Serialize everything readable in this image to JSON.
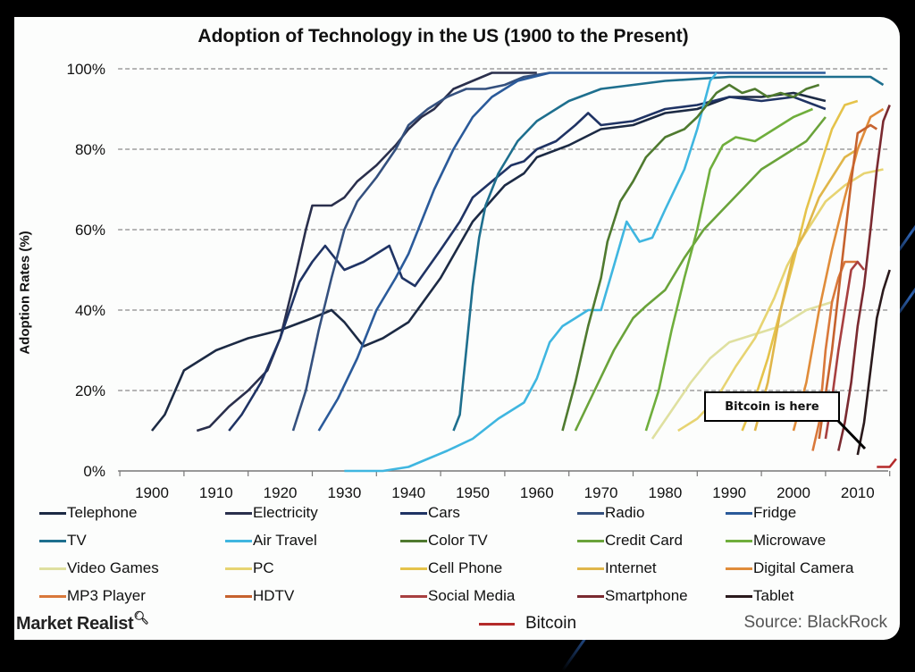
{
  "chart_data": {
    "type": "line",
    "title": "Adoption of Technology in the US (1900 to the Present)",
    "xlabel": "",
    "ylabel": "Adoption Rates (%)",
    "xlim": [
      1895,
      2015
    ],
    "ylim": [
      0,
      100
    ],
    "x_ticks": [
      "1900",
      "1910",
      "1920",
      "1930",
      "1940",
      "1950",
      "1960",
      "1970",
      "1980",
      "1990",
      "2000",
      "2010"
    ],
    "y_ticks": [
      "0%",
      "20%",
      "40%",
      "60%",
      "80%",
      "100%"
    ],
    "grid": "horizontal dashed",
    "legend_position": "bottom",
    "source": "Source: BlackRock",
    "annotation": "Bitcoin is here",
    "series": [
      {
        "name": "Telephone",
        "color": "#1c2a44",
        "points": [
          [
            1900,
            10
          ],
          [
            1902,
            14
          ],
          [
            1905,
            25
          ],
          [
            1910,
            30
          ],
          [
            1915,
            33
          ],
          [
            1920,
            35
          ],
          [
            1925,
            38
          ],
          [
            1928,
            40
          ],
          [
            1930,
            37
          ],
          [
            1933,
            31
          ],
          [
            1936,
            33
          ],
          [
            1940,
            37
          ],
          [
            1945,
            48
          ],
          [
            1950,
            62
          ],
          [
            1955,
            71
          ],
          [
            1958,
            74
          ],
          [
            1960,
            78
          ],
          [
            1965,
            81
          ],
          [
            1970,
            85
          ],
          [
            1975,
            86
          ],
          [
            1980,
            89
          ],
          [
            1985,
            90
          ],
          [
            1990,
            93
          ],
          [
            1995,
            93
          ],
          [
            2000,
            94
          ],
          [
            2005,
            92
          ]
        ]
      },
      {
        "name": "Electricity",
        "color": "#2a2f4c",
        "points": [
          [
            1907,
            10
          ],
          [
            1909,
            11
          ],
          [
            1912,
            16
          ],
          [
            1915,
            20
          ],
          [
            1918,
            25
          ],
          [
            1920,
            33
          ],
          [
            1922,
            46
          ],
          [
            1924,
            60
          ],
          [
            1925,
            66
          ],
          [
            1928,
            66
          ],
          [
            1930,
            68
          ],
          [
            1932,
            72
          ],
          [
            1935,
            76
          ],
          [
            1938,
            81
          ],
          [
            1940,
            85
          ],
          [
            1942,
            88
          ],
          [
            1944,
            90
          ],
          [
            1947,
            95
          ],
          [
            1950,
            97
          ],
          [
            1953,
            99
          ],
          [
            1960,
            99
          ]
        ]
      },
      {
        "name": "Cars",
        "color": "#1f3364",
        "points": [
          [
            1912,
            10
          ],
          [
            1914,
            14
          ],
          [
            1917,
            22
          ],
          [
            1920,
            33
          ],
          [
            1923,
            47
          ],
          [
            1925,
            52
          ],
          [
            1927,
            56
          ],
          [
            1928,
            54
          ],
          [
            1930,
            50
          ],
          [
            1933,
            52
          ],
          [
            1935,
            54
          ],
          [
            1937,
            56
          ],
          [
            1939,
            48
          ],
          [
            1941,
            46
          ],
          [
            1945,
            55
          ],
          [
            1948,
            62
          ],
          [
            1950,
            68
          ],
          [
            1953,
            72
          ],
          [
            1956,
            76
          ],
          [
            1958,
            77
          ],
          [
            1960,
            80
          ],
          [
            1963,
            82
          ],
          [
            1966,
            86
          ],
          [
            1968,
            89
          ],
          [
            1970,
            86
          ],
          [
            1975,
            87
          ],
          [
            1980,
            90
          ],
          [
            1985,
            91
          ],
          [
            1990,
            93
          ],
          [
            1995,
            92
          ],
          [
            2000,
            93
          ],
          [
            2005,
            90
          ]
        ]
      },
      {
        "name": "Radio",
        "color": "#34507e",
        "points": [
          [
            1922,
            10
          ],
          [
            1924,
            20
          ],
          [
            1926,
            35
          ],
          [
            1928,
            48
          ],
          [
            1930,
            60
          ],
          [
            1932,
            67
          ],
          [
            1935,
            73
          ],
          [
            1938,
            80
          ],
          [
            1940,
            86
          ],
          [
            1943,
            90
          ],
          [
            1946,
            93
          ],
          [
            1949,
            95
          ],
          [
            1952,
            95
          ],
          [
            1955,
            96
          ],
          [
            1958,
            98
          ],
          [
            1962,
            99
          ]
        ]
      },
      {
        "name": "Fridge",
        "color": "#2a5a9a",
        "points": [
          [
            1926,
            10
          ],
          [
            1929,
            18
          ],
          [
            1932,
            28
          ],
          [
            1935,
            40
          ],
          [
            1938,
            48
          ],
          [
            1940,
            54
          ],
          [
            1942,
            62
          ],
          [
            1944,
            70
          ],
          [
            1947,
            80
          ],
          [
            1950,
            88
          ],
          [
            1953,
            93
          ],
          [
            1957,
            97
          ],
          [
            1962,
            99
          ],
          [
            2005,
            99
          ]
        ]
      },
      {
        "name": "TV",
        "color": "#1e6f8e",
        "points": [
          [
            1947,
            10
          ],
          [
            1948,
            14
          ],
          [
            1949,
            30
          ],
          [
            1950,
            46
          ],
          [
            1951,
            58
          ],
          [
            1952,
            66
          ],
          [
            1954,
            74
          ],
          [
            1957,
            82
          ],
          [
            1960,
            87
          ],
          [
            1965,
            92
          ],
          [
            1970,
            95
          ],
          [
            1980,
            97
          ],
          [
            1990,
            98
          ],
          [
            2000,
            98
          ],
          [
            2010,
            98
          ],
          [
            2012,
            98
          ],
          [
            2014,
            96
          ]
        ]
      },
      {
        "name": "Air Travel",
        "color": "#3fb6e0",
        "points": [
          [
            1930,
            0
          ],
          [
            1936,
            0
          ],
          [
            1940,
            1
          ],
          [
            1943,
            3
          ],
          [
            1946,
            5
          ],
          [
            1950,
            8
          ],
          [
            1954,
            13
          ],
          [
            1958,
            17
          ],
          [
            1960,
            23
          ],
          [
            1962,
            32
          ],
          [
            1964,
            36
          ],
          [
            1966,
            38
          ],
          [
            1968,
            40
          ],
          [
            1970,
            40
          ],
          [
            1972,
            51
          ],
          [
            1974,
            62
          ],
          [
            1976,
            57
          ],
          [
            1978,
            58
          ],
          [
            1980,
            65
          ],
          [
            1983,
            75
          ],
          [
            1985,
            85
          ],
          [
            1987,
            97
          ],
          [
            1988,
            99
          ]
        ]
      },
      {
        "name": "Color TV",
        "color": "#4f7a2f",
        "points": [
          [
            1964,
            10
          ],
          [
            1966,
            22
          ],
          [
            1968,
            36
          ],
          [
            1970,
            48
          ],
          [
            1971,
            57
          ],
          [
            1973,
            67
          ],
          [
            1975,
            72
          ],
          [
            1977,
            78
          ],
          [
            1980,
            83
          ],
          [
            1983,
            85
          ],
          [
            1985,
            88
          ],
          [
            1988,
            94
          ],
          [
            1990,
            96
          ],
          [
            1992,
            94
          ],
          [
            1994,
            95
          ],
          [
            1996,
            93
          ],
          [
            1998,
            94
          ],
          [
            2000,
            93
          ],
          [
            2002,
            95
          ],
          [
            2004,
            96
          ]
        ]
      },
      {
        "name": "Credit Card",
        "color": "#6aa33a",
        "points": [
          [
            1966,
            10
          ],
          [
            1969,
            20
          ],
          [
            1972,
            30
          ],
          [
            1975,
            38
          ],
          [
            1977,
            41
          ],
          [
            1980,
            45
          ],
          [
            1983,
            53
          ],
          [
            1986,
            60
          ],
          [
            1989,
            65
          ],
          [
            1992,
            70
          ],
          [
            1995,
            75
          ],
          [
            1999,
            79
          ],
          [
            2002,
            82
          ],
          [
            2005,
            88
          ]
        ]
      },
      {
        "name": "Microwave",
        "color": "#6fae3c",
        "points": [
          [
            1977,
            10
          ],
          [
            1979,
            20
          ],
          [
            1981,
            35
          ],
          [
            1983,
            48
          ],
          [
            1985,
            60
          ],
          [
            1987,
            75
          ],
          [
            1989,
            81
          ],
          [
            1991,
            83
          ],
          [
            1994,
            82
          ],
          [
            1997,
            85
          ],
          [
            2000,
            88
          ],
          [
            2003,
            90
          ]
        ]
      },
      {
        "name": "Video Games",
        "color": "#dfe0a0",
        "points": [
          [
            1978,
            8
          ],
          [
            1981,
            15
          ],
          [
            1984,
            22
          ],
          [
            1987,
            28
          ],
          [
            1990,
            32
          ],
          [
            1994,
            34
          ],
          [
            1998,
            36
          ],
          [
            2002,
            40
          ],
          [
            2006,
            42
          ]
        ]
      },
      {
        "name": "PC",
        "color": "#e7d472",
        "points": [
          [
            1982,
            10
          ],
          [
            1985,
            13
          ],
          [
            1988,
            18
          ],
          [
            1991,
            26
          ],
          [
            1994,
            33
          ],
          [
            1997,
            43
          ],
          [
            1999,
            51
          ],
          [
            2001,
            57
          ],
          [
            2003,
            62
          ],
          [
            2005,
            67
          ],
          [
            2008,
            71
          ],
          [
            2011,
            74
          ],
          [
            2014,
            75
          ]
        ]
      },
      {
        "name": "Cell Phone",
        "color": "#e5c34a",
        "points": [
          [
            1992,
            10
          ],
          [
            1994,
            18
          ],
          [
            1996,
            28
          ],
          [
            1998,
            40
          ],
          [
            2000,
            52
          ],
          [
            2002,
            65
          ],
          [
            2004,
            75
          ],
          [
            2006,
            85
          ],
          [
            2008,
            91
          ],
          [
            2010,
            92
          ]
        ]
      },
      {
        "name": "Internet",
        "color": "#e0b64a",
        "points": [
          [
            1994,
            10
          ],
          [
            1996,
            22
          ],
          [
            1998,
            40
          ],
          [
            2000,
            54
          ],
          [
            2002,
            60
          ],
          [
            2004,
            68
          ],
          [
            2006,
            73
          ],
          [
            2008,
            78
          ],
          [
            2010,
            80
          ]
        ]
      },
      {
        "name": "Digital Camera",
        "color": "#e08c3a",
        "points": [
          [
            2000,
            10
          ],
          [
            2002,
            22
          ],
          [
            2004,
            40
          ],
          [
            2006,
            55
          ],
          [
            2008,
            68
          ],
          [
            2010,
            80
          ],
          [
            2012,
            88
          ],
          [
            2014,
            90
          ]
        ]
      },
      {
        "name": "MP3 Player",
        "color": "#d9783a",
        "points": [
          [
            2003,
            5
          ],
          [
            2004,
            12
          ],
          [
            2005,
            30
          ],
          [
            2006,
            42
          ],
          [
            2007,
            48
          ],
          [
            2008,
            52
          ],
          [
            2009,
            52
          ],
          [
            2010,
            52
          ]
        ]
      },
      {
        "name": "HDTV",
        "color": "#c6622e",
        "points": [
          [
            2004,
            8
          ],
          [
            2006,
            30
          ],
          [
            2008,
            58
          ],
          [
            2009,
            72
          ],
          [
            2010,
            84
          ],
          [
            2012,
            86
          ],
          [
            2013,
            85
          ]
        ]
      },
      {
        "name": "Social Media",
        "color": "#a84040",
        "points": [
          [
            2005,
            8
          ],
          [
            2006,
            18
          ],
          [
            2007,
            30
          ],
          [
            2008,
            40
          ],
          [
            2009,
            50
          ],
          [
            2010,
            52
          ],
          [
            2011,
            50
          ]
        ]
      },
      {
        "name": "Smartphone",
        "color": "#7a2a30",
        "points": [
          [
            2007,
            5
          ],
          [
            2008,
            12
          ],
          [
            2009,
            22
          ],
          [
            2010,
            36
          ],
          [
            2011,
            46
          ],
          [
            2012,
            60
          ],
          [
            2013,
            75
          ],
          [
            2014,
            87
          ],
          [
            2015,
            91
          ]
        ]
      },
      {
        "name": "Tablet",
        "color": "#2a1a1c",
        "points": [
          [
            2010,
            4
          ],
          [
            2011,
            12
          ],
          [
            2012,
            25
          ],
          [
            2013,
            38
          ],
          [
            2014,
            45
          ],
          [
            2015,
            50
          ]
        ]
      },
      {
        "name": "Bitcoin",
        "color": "#b42a2a",
        "points": [
          [
            2013,
            1
          ],
          [
            2015,
            1
          ],
          [
            2016,
            3
          ]
        ]
      }
    ]
  },
  "logo": "Market Realist",
  "logo_icon": "magnifier-icon"
}
